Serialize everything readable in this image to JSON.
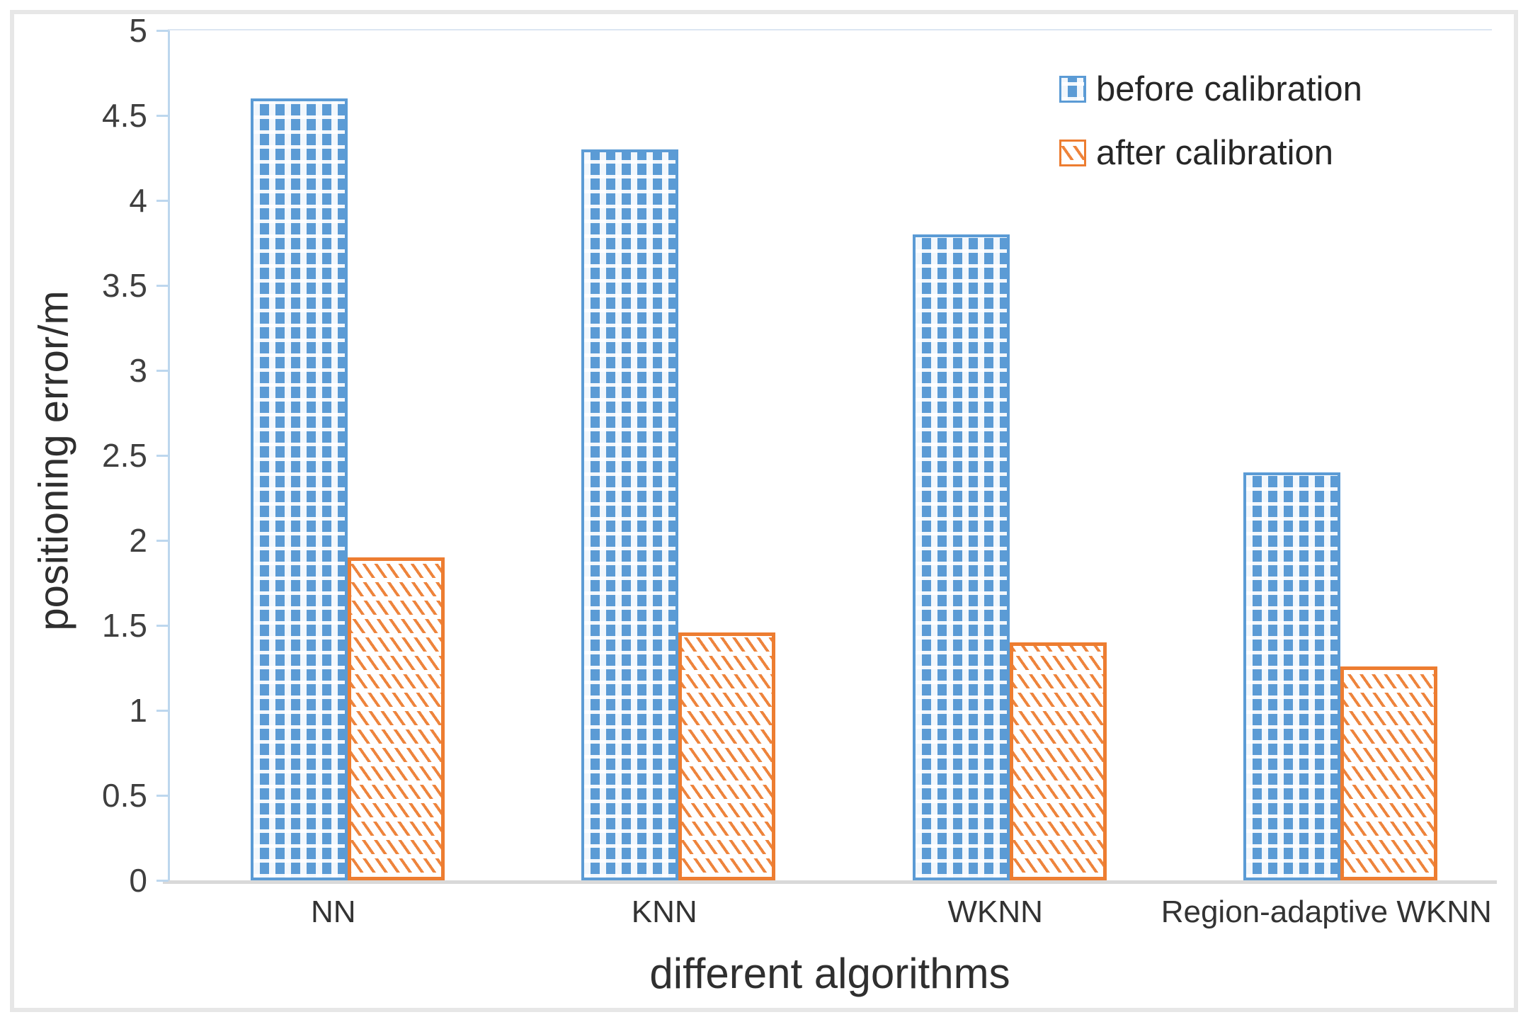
{
  "chart_data": {
    "type": "bar",
    "title": "",
    "xlabel": "different algorithms",
    "ylabel": "positioning error/m",
    "categories": [
      "NN",
      "KNN",
      "WKNN",
      "Region-adaptive WKNN"
    ],
    "series": [
      {
        "name": "before calibration",
        "values": [
          4.6,
          4.3,
          3.8,
          2.4
        ],
        "color": "#5B9BD5",
        "pattern": "blue-checker"
      },
      {
        "name": "after calibration",
        "values": [
          1.9,
          1.46,
          1.4,
          1.26
        ],
        "color": "#ED7D31",
        "pattern": "orange-diagonal-hatch"
      }
    ],
    "ylim": [
      0,
      5
    ],
    "y_tick_step": 0.5,
    "y_ticks": [
      "0",
      "0.5",
      "1",
      "1.5",
      "2",
      "2.5",
      "3",
      "3.5",
      "4",
      "4.5",
      "5"
    ],
    "grid": false,
    "legend_position": "top-right",
    "colors": {
      "axis_line": "#BDD7EE",
      "baseline": "#D9D9D9",
      "gridline_top": "#DCE6F2",
      "text": "#383838",
      "frame_border": "#E7E7E7"
    }
  }
}
